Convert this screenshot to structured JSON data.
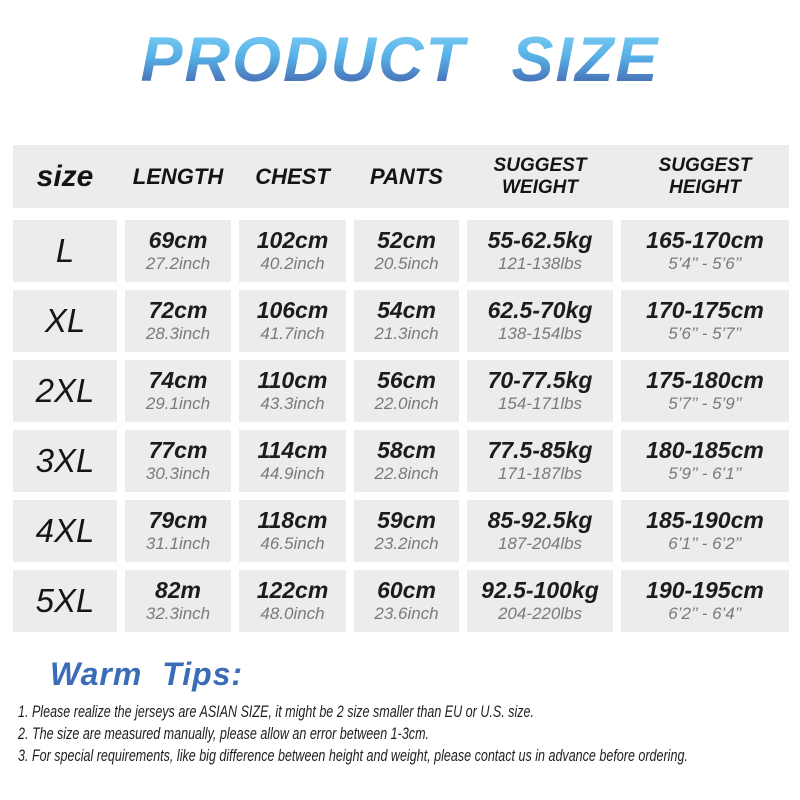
{
  "title": "PRODUCT SIZE",
  "colors": {
    "title_gradient_top": "#84d4f7",
    "title_gradient_bottom": "#40509e",
    "cell_background": "#ececec",
    "tips_heading_blue": "#3b6cb7",
    "sub_value_gray": "#7a7a7a"
  },
  "table": {
    "headers": [
      {
        "label": "size"
      },
      {
        "label": "LENGTH"
      },
      {
        "label": "CHEST"
      },
      {
        "label": "PANTS"
      },
      {
        "label": "SUGGEST",
        "label2": "WEIGHT"
      },
      {
        "label": "SUGGEST",
        "label2": "HEIGHT"
      }
    ],
    "rows": [
      {
        "size": "L",
        "cells": [
          {
            "main": "69cm",
            "sub": "27.2inch"
          },
          {
            "main": "102cm",
            "sub": "40.2inch"
          },
          {
            "main": "52cm",
            "sub": "20.5inch"
          },
          {
            "main": "55-62.5kg",
            "sub": "121-138lbs"
          },
          {
            "main": "165-170cm",
            "sub": "5’4’’ - 5’6’’"
          }
        ]
      },
      {
        "size": "XL",
        "cells": [
          {
            "main": "72cm",
            "sub": "28.3inch"
          },
          {
            "main": "106cm",
            "sub": "41.7inch"
          },
          {
            "main": "54cm",
            "sub": "21.3inch"
          },
          {
            "main": "62.5-70kg",
            "sub": "138-154lbs"
          },
          {
            "main": "170-175cm",
            "sub": "5’6’’ - 5’7’’"
          }
        ]
      },
      {
        "size": "2XL",
        "cells": [
          {
            "main": "74cm",
            "sub": "29.1inch"
          },
          {
            "main": "110cm",
            "sub": "43.3inch"
          },
          {
            "main": "56cm",
            "sub": "22.0inch"
          },
          {
            "main": "70-77.5kg",
            "sub": "154-171lbs"
          },
          {
            "main": "175-180cm",
            "sub": "5’7’’ - 5’9’’"
          }
        ]
      },
      {
        "size": "3XL",
        "cells": [
          {
            "main": "77cm",
            "sub": "30.3inch"
          },
          {
            "main": "114cm",
            "sub": "44.9inch"
          },
          {
            "main": "58cm",
            "sub": "22.8inch"
          },
          {
            "main": "77.5-85kg",
            "sub": "171-187lbs"
          },
          {
            "main": "180-185cm",
            "sub": "5’9’’ - 6’1’’"
          }
        ]
      },
      {
        "size": "4XL",
        "cells": [
          {
            "main": "79cm",
            "sub": "31.1inch"
          },
          {
            "main": "118cm",
            "sub": "46.5inch"
          },
          {
            "main": "59cm",
            "sub": "23.2inch"
          },
          {
            "main": "85-92.5kg",
            "sub": "187-204lbs"
          },
          {
            "main": "185-190cm",
            "sub": "6’1’’ - 6’2’’"
          }
        ]
      },
      {
        "size": "5XL",
        "cells": [
          {
            "main": "82m",
            "sub": "32.3inch"
          },
          {
            "main": "122cm",
            "sub": "48.0inch"
          },
          {
            "main": "60cm",
            "sub": "23.6inch"
          },
          {
            "main": "92.5-100kg",
            "sub": "204-220lbs"
          },
          {
            "main": "190-195cm",
            "sub": "6’2’’ - 6’4’’"
          }
        ]
      }
    ]
  },
  "tips": {
    "heading": "Warm Tips:",
    "items": [
      "1. Please realize the jerseys are ASIAN SIZE,  it might be 2 size smaller than EU or U.S. size.",
      "2. The size are measured manually, please allow an error between 1-3cm.",
      "3. For special requirements, like big difference between height and weight, please contact us in advance before ordering."
    ]
  }
}
